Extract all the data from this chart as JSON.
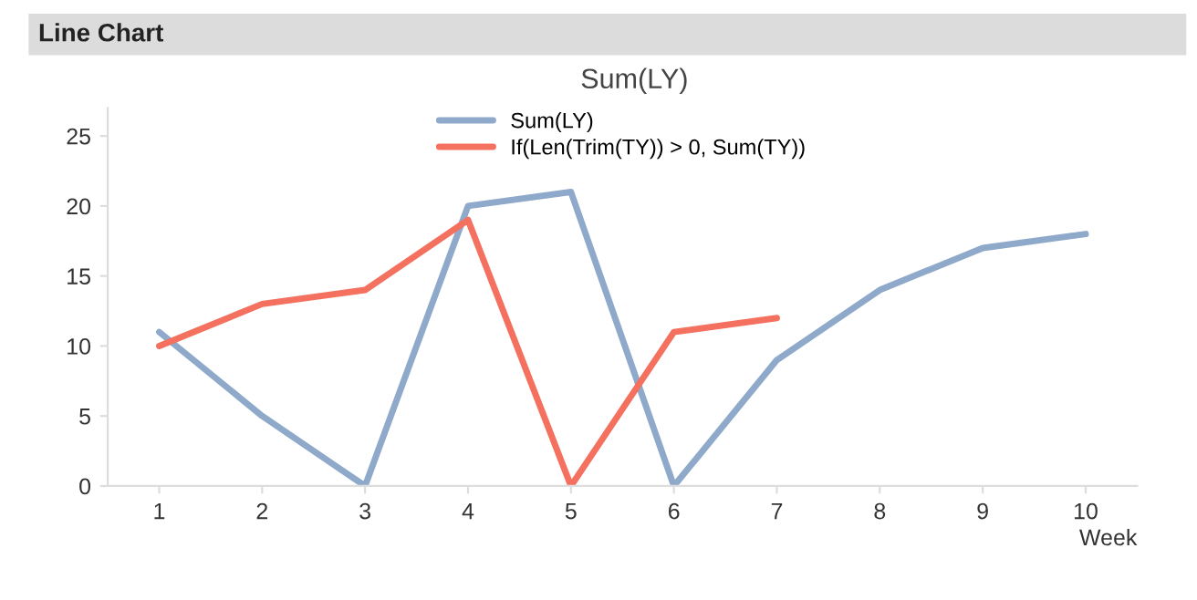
{
  "chart_data": {
    "type": "line",
    "title": "Line Chart",
    "subtitle": "Sum(LY)",
    "xlabel": "Week",
    "categories": [
      "1",
      "2",
      "3",
      "4",
      "5",
      "6",
      "7",
      "8",
      "9",
      "10"
    ],
    "series": [
      {
        "name": "Sum(LY)",
        "color": "#8ea9c9",
        "values": [
          11,
          5,
          0,
          20,
          21,
          0,
          9,
          14,
          17,
          18
        ]
      },
      {
        "name": "If(Len(Trim(TY)) > 0, Sum(TY))",
        "color": "#f4705f",
        "values": [
          10,
          13,
          14,
          19,
          0,
          11,
          12,
          null,
          null,
          null
        ]
      }
    ],
    "ylim": [
      0,
      27
    ],
    "yticks": [
      0,
      5,
      10,
      15,
      20,
      25
    ],
    "grid": false,
    "legend": "top",
    "marker": "none",
    "line_style": "solid"
  }
}
